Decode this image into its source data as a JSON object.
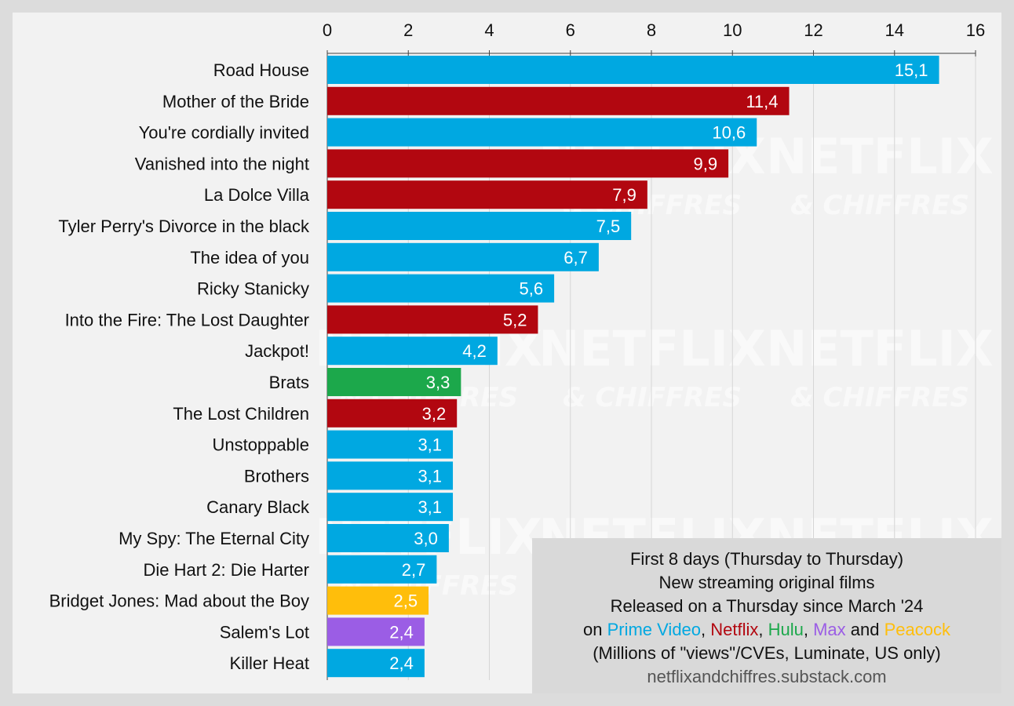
{
  "chart_data": {
    "type": "bar",
    "orientation": "horizontal",
    "categories": [
      "Road House",
      "Mother of the Bride",
      "You're cordially invited",
      "Vanished into the night",
      "La Dolce Villa",
      "Tyler Perry's Divorce in the black",
      "The idea of you",
      "Ricky Stanicky",
      "Into the Fire: The Lost Daughter",
      "Jackpot!",
      "Brats",
      "The Lost Children",
      "Unstoppable",
      "Brothers",
      "Canary Black",
      "My Spy: The Eternal City",
      "Die Hart 2: Die Harter",
      "Bridget Jones: Mad about the Boy",
      "Salem's Lot",
      "Killer Heat"
    ],
    "values": [
      15.1,
      11.4,
      10.6,
      9.9,
      7.9,
      7.5,
      6.7,
      5.6,
      5.2,
      4.2,
      3.3,
      3.2,
      3.1,
      3.1,
      3.1,
      3.0,
      2.7,
      2.5,
      2.4,
      2.4
    ],
    "value_labels": [
      "15,1",
      "11,4",
      "10,6",
      "9,9",
      "7,9",
      "7,5",
      "6,7",
      "5,6",
      "5,2",
      "4,2",
      "3,3",
      "3,2",
      "3,1",
      "3,1",
      "3,1",
      "3,0",
      "2,7",
      "2,5",
      "2,4",
      "2,4"
    ],
    "platforms": [
      "Prime Video",
      "Netflix",
      "Prime Video",
      "Netflix",
      "Netflix",
      "Prime Video",
      "Prime Video",
      "Prime Video",
      "Netflix",
      "Prime Video",
      "Hulu",
      "Netflix",
      "Prime Video",
      "Prime Video",
      "Prime Video",
      "Prime Video",
      "Prime Video",
      "Peacock",
      "Max",
      "Prime Video"
    ],
    "platform_colors": {
      "Prime Video": "#00a8e1",
      "Netflix": "#b20710",
      "Hulu": "#1ca84b",
      "Max": "#9b5de5",
      "Peacock": "#ffbe0b"
    },
    "xlim": [
      0,
      16
    ],
    "xticks": [
      0,
      2,
      4,
      6,
      8,
      10,
      12,
      14,
      16
    ],
    "axis_position": "top",
    "grid": true
  },
  "watermark": {
    "line1": "NETFLIX",
    "line2": "& CHIFFRES"
  },
  "caption": {
    "line1": "First 8 days (Thursday to Thursday)",
    "line2": "New streaming original films",
    "line3": "Released on a Thursday since March '24",
    "line4_prefix": "on ",
    "platform1": "Prime Video",
    "sep1": ", ",
    "platform2": "Netflix",
    "sep2": ", ",
    "platform3": "Hulu",
    "sep3": ", ",
    "platform4": "Max",
    "sep4": " and ",
    "platform5": "Peacock",
    "line5": "(Millions of \"views\"/CVEs, Luminate, US only)",
    "url": "netflixandchiffres.substack.com"
  },
  "colors": {
    "prime_video": "#00a8e1",
    "netflix": "#b20710",
    "hulu": "#1ca84b",
    "max": "#9b5de5",
    "peacock": "#ffbe0b",
    "background": "#f2f2f2"
  }
}
